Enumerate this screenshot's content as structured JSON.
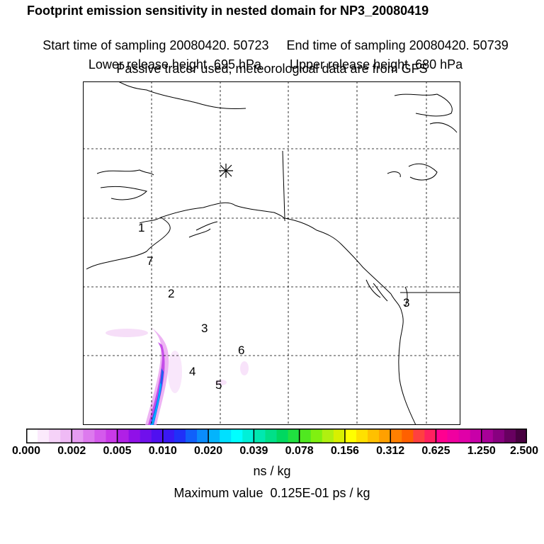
{
  "header": {
    "title": "Footprint emission sensitivity in nested domain for NP3_20080419",
    "start_time": "Start time of sampling 20080420. 50723",
    "end_time": "End time of sampling 20080420. 50739",
    "lower_height": "Lower release height  695 hPa",
    "upper_height": "Upper release height  680 hPa",
    "tracer_note": "Passive tracer used, meteorological data are from GFS"
  },
  "map": {
    "site_labels": [
      "1",
      "7",
      "2",
      "3",
      "6",
      "4",
      "5"
    ],
    "release_marker": "asterisk-release-point"
  },
  "colorbar": {
    "tick_labels": [
      "0.000",
      "0.002",
      "0.005",
      "0.010",
      "0.020",
      "0.039",
      "0.078",
      "0.156",
      "0.312",
      "0.625",
      "1.250",
      "2.500"
    ],
    "units": "ns / kg",
    "colors": [
      "#ffffff",
      "#fbeafc",
      "#f5d2f8",
      "#efbaf5",
      "#e69cf1",
      "#dd7aee",
      "#d45aec",
      "#c93ae8",
      "#b020e6",
      "#9010e8",
      "#7010ec",
      "#5010f0",
      "#3a18f4",
      "#2030f8",
      "#1060fa",
      "#0a8cfb",
      "#04b4fc",
      "#00e0ff",
      "#00ffff",
      "#00f0d8",
      "#00e8b0",
      "#00e088",
      "#00d860",
      "#20e040",
      "#50e820",
      "#80f010",
      "#b0f010",
      "#d8f000",
      "#ffff00",
      "#ffe000",
      "#ffc000",
      "#ffa000",
      "#ff8000",
      "#ff6000",
      "#ff4040",
      "#ff2060",
      "#ff0090",
      "#f000a0",
      "#e000a8",
      "#c800a8",
      "#a80098",
      "#880080",
      "#680060",
      "#480040"
    ]
  },
  "footer": {
    "max_value": "Maximum value  0.125E-01 ps / kg"
  }
}
